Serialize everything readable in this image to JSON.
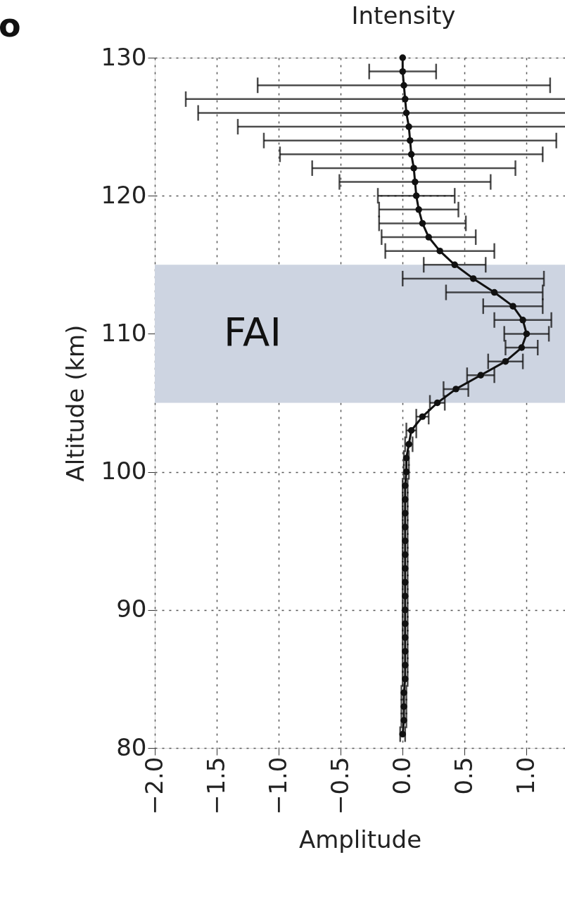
{
  "chart_data": {
    "type": "line",
    "title": "Intensity",
    "xlabel": "Amplitude",
    "ylabel": "Altitude (km)",
    "orientation": "horizontal",
    "annotations": [
      "o"
    ],
    "x": [
      81,
      82,
      83,
      84,
      85,
      86,
      87,
      88,
      89,
      90,
      91,
      92,
      93,
      94,
      95,
      96,
      97,
      98,
      99,
      100,
      101,
      102,
      103,
      104,
      105,
      106,
      107,
      108,
      109,
      110,
      111,
      112,
      113,
      114,
      115,
      116,
      117,
      118,
      119,
      120,
      121,
      122,
      123,
      124,
      125,
      126,
      127,
      128,
      129,
      130
    ],
    "series": [
      {
        "color": "#111111",
        "values": [
          0.0,
          0.01,
          0.01,
          0.01,
          0.02,
          0.02,
          0.02,
          0.02,
          0.02,
          0.02,
          0.02,
          0.02,
          0.02,
          0.02,
          0.02,
          0.02,
          0.02,
          0.02,
          0.02,
          0.03,
          0.03,
          0.05,
          0.07,
          0.16,
          0.28,
          0.43,
          0.63,
          0.83,
          0.96,
          1.0,
          0.97,
          0.89,
          0.74,
          0.57,
          0.42,
          0.3,
          0.21,
          0.16,
          0.13,
          0.11,
          0.1,
          0.09,
          0.07,
          0.06,
          0.05,
          0.03,
          0.02,
          0.01,
          0.0,
          0.0
        ],
        "errors": [
          0.02,
          0.02,
          0.02,
          0.02,
          0.02,
          0.02,
          0.02,
          0.02,
          0.02,
          0.02,
          0.02,
          0.02,
          0.02,
          0.02,
          0.02,
          0.02,
          0.02,
          0.02,
          0.02,
          0.02,
          0.02,
          0.03,
          0.04,
          0.05,
          0.06,
          0.1,
          0.11,
          0.14,
          0.13,
          0.18,
          0.23,
          0.24,
          0.39,
          0.57,
          0.25,
          0.44,
          0.38,
          0.35,
          0.32,
          0.31,
          0.61,
          0.82,
          1.06,
          1.18,
          1.38,
          1.68,
          1.77,
          1.18,
          0.27,
          null
        ]
      }
    ],
    "xlim": [
      -2.0,
      1.31
    ],
    "xticks": [
      {
        "value": -2.0,
        "label": "−2.0"
      },
      {
        "value": -1.5,
        "label": "−1.5"
      },
      {
        "value": -1.0,
        "label": "−1.0"
      },
      {
        "value": -0.5,
        "label": "−0.5"
      },
      {
        "value": 0.0,
        "label": "0.0"
      },
      {
        "value": 0.5,
        "label": "0.5"
      },
      {
        "value": 1.0,
        "label": "1.0"
      }
    ],
    "ylim": [
      80,
      130
    ],
    "yticks": [
      80,
      90,
      100,
      110,
      120,
      130
    ],
    "bands": [
      {
        "axis": "y",
        "from": 105,
        "to": 115,
        "label": "FAI",
        "color": "#cdd4e1"
      }
    ],
    "grid": true,
    "marker": "circle",
    "line_style": "solid"
  }
}
